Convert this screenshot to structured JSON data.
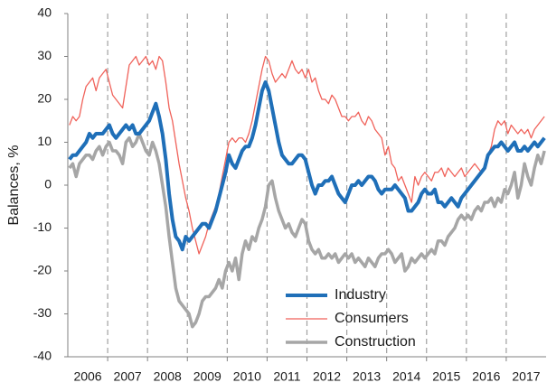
{
  "chart_data": {
    "type": "line",
    "y_label": "Balances, %",
    "categories": [
      null,
      null,
      null,
      null,
      null,
      "2006",
      null,
      null,
      null,
      null,
      null,
      null,
      null,
      null,
      null,
      null,
      null,
      "2007",
      null,
      null,
      null,
      null,
      null,
      null,
      null,
      null,
      null,
      null,
      null,
      "2008",
      null,
      null,
      null,
      null,
      null,
      null,
      null,
      null,
      null,
      null,
      null,
      "2009",
      null,
      null,
      null,
      null,
      null,
      null,
      null,
      null,
      null,
      null,
      null,
      "2010",
      null,
      null,
      null,
      null,
      null,
      null,
      null,
      null,
      null,
      null,
      null,
      "2011",
      null,
      null,
      null,
      null,
      null,
      null,
      null,
      null,
      null,
      null,
      null,
      "2012",
      null,
      null,
      null,
      null,
      null,
      null,
      null,
      null,
      null,
      null,
      null,
      "2013",
      null,
      null,
      null,
      null,
      null,
      null,
      null,
      null,
      null,
      null,
      null,
      "2014",
      null,
      null,
      null,
      null,
      null,
      null,
      null,
      null,
      null,
      null,
      null,
      "2015",
      null,
      null,
      null,
      null,
      null,
      null,
      null,
      null,
      null,
      null,
      null,
      "2016",
      null,
      null,
      null,
      null,
      null,
      null,
      null,
      null,
      null,
      null,
      null,
      "2017",
      null,
      null,
      null,
      null,
      null,
      null
    ],
    "series": [
      {
        "name": "Industry",
        "color": "#1f6fb8",
        "width": 4,
        "values": [
          6,
          7,
          7,
          8,
          9,
          10,
          12,
          11,
          12,
          12,
          12,
          13,
          14,
          12,
          11,
          12,
          13,
          14,
          13,
          14,
          12,
          12,
          13,
          14,
          15,
          17,
          19,
          16,
          12,
          6,
          -2,
          -8,
          -12,
          -13,
          -15,
          -12,
          -13,
          -12,
          -11,
          -10,
          -9,
          -9,
          -10,
          -8,
          -6,
          -3,
          0,
          3,
          7,
          5,
          4,
          6,
          8,
          9,
          9,
          11,
          14,
          18,
          22,
          24,
          22,
          18,
          14,
          10,
          7,
          6,
          5,
          5,
          6,
          7,
          7,
          6,
          3,
          0,
          -2,
          0,
          0,
          1,
          1,
          2,
          0,
          -2,
          -3,
          -4,
          -2,
          0,
          0,
          1,
          0,
          1,
          2,
          2,
          1,
          -1,
          -2,
          -1,
          -1,
          -1,
          0,
          -1,
          -2,
          -3,
          -6,
          -6,
          -5,
          -4,
          -2,
          -1,
          -2,
          -2,
          -1,
          -4,
          -4,
          -5,
          -4,
          -3,
          -4,
          -5,
          -3,
          -2,
          -1,
          0,
          1,
          2,
          3,
          4,
          7,
          8,
          9,
          9,
          10,
          9,
          8,
          9,
          10,
          8,
          8,
          9,
          8,
          9,
          10,
          9,
          10,
          11
        ]
      },
      {
        "name": "Consumers",
        "color": "#f0625a",
        "width": 1.3,
        "values": [
          14,
          16,
          15,
          16,
          20,
          23,
          24,
          25,
          22,
          25,
          26,
          27,
          24,
          21,
          20,
          19,
          18,
          23,
          28,
          29,
          30,
          28,
          29,
          30,
          28,
          29,
          27,
          30,
          29,
          24,
          18,
          15,
          10,
          5,
          1,
          -3,
          -6,
          -10,
          -13,
          -16,
          -14,
          -12,
          -9,
          -7,
          -5,
          -2,
          2,
          6,
          10,
          11,
          10,
          11,
          11,
          10,
          12,
          15,
          19,
          23,
          27,
          30,
          29,
          26,
          24,
          25,
          26,
          25,
          27,
          29,
          27,
          26,
          27,
          25,
          27,
          24,
          25,
          22,
          20,
          20,
          19,
          21,
          20,
          18,
          16,
          16,
          15,
          16,
          16,
          17,
          15,
          14,
          16,
          15,
          13,
          12,
          11,
          7,
          9,
          5,
          4,
          1,
          2,
          0,
          -2,
          -4,
          2,
          0,
          2,
          3,
          2,
          1,
          3,
          3,
          4,
          2,
          4,
          3,
          2,
          3,
          4,
          2,
          3,
          4,
          5,
          4,
          3,
          4,
          7,
          9,
          13,
          15,
          14,
          15,
          12,
          14,
          13,
          12,
          13,
          12,
          13,
          11,
          13,
          14,
          15,
          16
        ]
      },
      {
        "name": "Construction",
        "color": "#a6a6a6",
        "width": 3.5,
        "values": [
          4,
          5,
          2,
          5,
          6,
          7,
          7,
          6,
          8,
          9,
          7,
          9,
          10,
          8,
          8,
          7,
          5,
          10,
          11,
          9,
          10,
          12,
          10,
          8,
          7,
          10,
          8,
          5,
          0,
          -5,
          -12,
          -18,
          -24,
          -27,
          -28,
          -29,
          -30,
          -33,
          -32,
          -30,
          -27,
          -26,
          -26,
          -25,
          -24,
          -22,
          -24,
          -20,
          -18,
          -20,
          -17,
          -22,
          -16,
          -13,
          -15,
          -12,
          -13,
          -10,
          -8,
          -5,
          0,
          1,
          -3,
          -6,
          -8,
          -10,
          -9,
          -11,
          -12,
          -10,
          -8,
          -9,
          -13,
          -15,
          -16,
          -15,
          -17,
          -17,
          -16,
          -17,
          -16,
          -18,
          -17,
          -16,
          -17,
          -16,
          -18,
          -17,
          -18,
          -19,
          -17,
          -18,
          -19,
          -17,
          -16,
          -16,
          -15,
          -16,
          -18,
          -17,
          -16,
          -20,
          -19,
          -17,
          -18,
          -17,
          -16,
          -17,
          -16,
          -15,
          -16,
          -13,
          -13,
          -14,
          -12,
          -11,
          -10,
          -8,
          -7,
          -8,
          -7,
          -8,
          -6,
          -5,
          -6,
          -4,
          -4,
          -3,
          -5,
          -3,
          -4,
          -1,
          -2,
          0,
          3,
          -3,
          0,
          5,
          2,
          0,
          4,
          7,
          5,
          8
        ]
      }
    ],
    "ylim": [
      -40,
      40
    ],
    "yticks": [
      -40,
      -30,
      -20,
      -10,
      0,
      10,
      20,
      30,
      40
    ],
    "year_grid": true,
    "legend": "lower center"
  }
}
